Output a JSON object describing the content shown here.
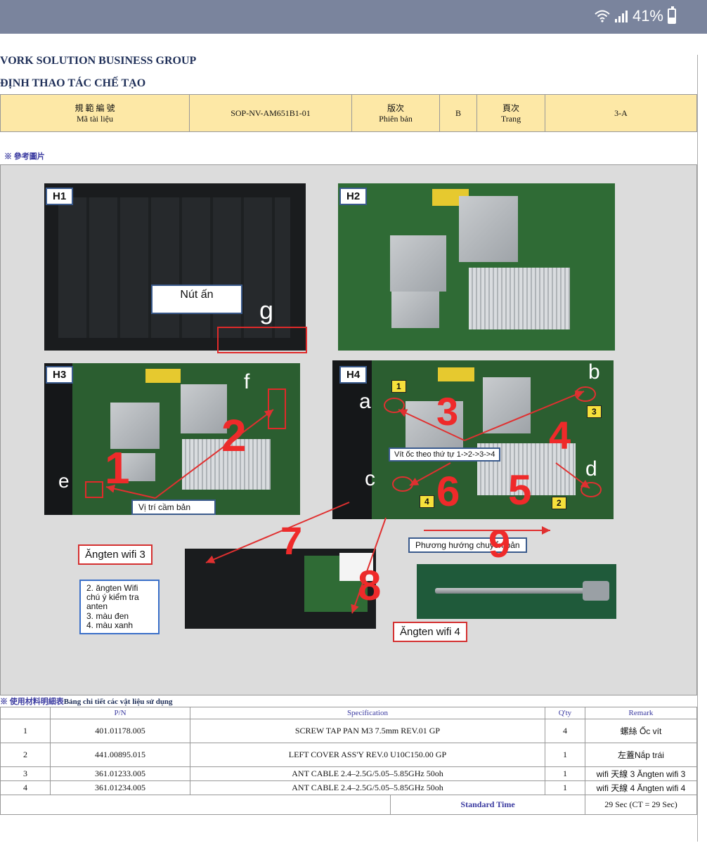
{
  "status_bar": {
    "battery_text": "41%",
    "battery_level": 0.41,
    "icons": [
      "wifi-icon",
      "signal-icon",
      "battery-icon"
    ]
  },
  "document": {
    "company": "VORK SOLUTION BUSINESS GROUP",
    "subtitle": "ĐỊNH THAO TÁC CHẾ TẠO",
    "header": {
      "doc_code_label_cn": "規 範 編 號",
      "doc_code_label_vn": "Mã tài liệu",
      "doc_code_value": "SOP-NV-AM651B1-01",
      "version_label_cn": "版次",
      "version_label_vn": "Phiên bản",
      "version_value": "B",
      "page_label_cn": "頁次",
      "page_label_vn": "Trang",
      "page_value": "3-A"
    },
    "reference_label": "※ 參考圖片",
    "figures": {
      "h1": {
        "label": "H1",
        "callout": "Nút ấn",
        "letter": "g"
      },
      "h2": {
        "label": "H2"
      },
      "h3": {
        "label": "H3",
        "num1": "1",
        "num2": "2",
        "letter_e": "e",
        "letter_f": "f",
        "callout": "Vị trí cầm bản"
      },
      "h4": {
        "label": "H4",
        "letter_a": "a",
        "letter_b": "b",
        "letter_c": "c",
        "letter_d": "d",
        "num3": "3",
        "num4": "4",
        "num5": "5",
        "num6": "6",
        "tag1": "1",
        "tag2": "2",
        "tag3": "3",
        "tag4": "4",
        "callout": "Vít ốc theo thứ tự 1->2->3->4"
      },
      "bottom": {
        "ant3": "Ăngten wifi 3",
        "ant4": "Ăngten wifi 4",
        "num7": "7",
        "num8": "8",
        "num9": "9",
        "direction": "Phương hướng chuyển bản",
        "note_lines": [
          "2. ăngten Wifi",
          "chú ý kiểm tra",
          "anten",
          " 3. màu đen",
          "4. màu xanh"
        ]
      }
    },
    "bom": {
      "title_cn": "※ 使用材料明細表",
      "title_vn": "Bảng chi tiết các vật liệu sử dụng",
      "columns": [
        "P/N",
        "Specification",
        "Q'ty",
        "Remark"
      ],
      "rows": [
        {
          "no": "1",
          "pn": "401.01178.005",
          "spec": "SCREW TAP PAN M3 7.5mm REV.01 GP",
          "qty": "4",
          "remark": "螺絲 Ốc vít"
        },
        {
          "no": "2",
          "pn": "441.00895.015",
          "spec": "LEFT COVER ASS'Y REV.0 U10C150.00 GP",
          "qty": "1",
          "remark": "左蓋Nắp trái"
        },
        {
          "no": "3",
          "pn": "361.01233.005",
          "spec": "ANT CABLE 2.4–2.5G/5.05–5.85GHz 50oh",
          "qty": "1",
          "remark": "wifi 天線 3 Ăngten wifi 3"
        },
        {
          "no": "4",
          "pn": "361.01234.005",
          "spec": "ANT CABLE 2.4–2.5G/5.05–5.85GHz 50oh",
          "qty": "1",
          "remark": "wifi 天線 4  Ăngten wifi 4"
        }
      ],
      "standard_time_label": "Standard Time",
      "standard_time_value": "29 Sec (CT = 29 Sec)"
    }
  }
}
